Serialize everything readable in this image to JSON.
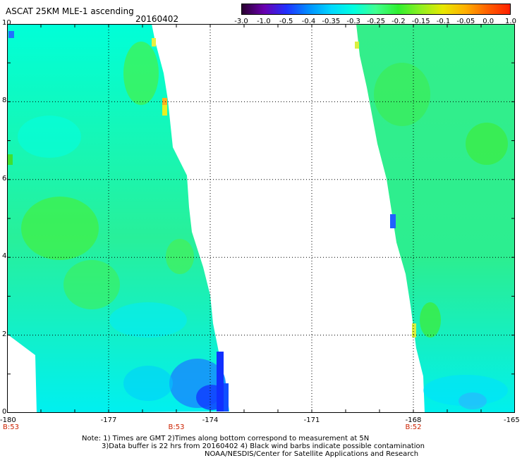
{
  "header": {
    "title": "ASCAT 25KM MLE-1 ascending",
    "date": "20160402"
  },
  "colorbar": {
    "labels": [
      "-3.0",
      "-1.0",
      "-0.5",
      "-0.4",
      "-0.35",
      "-0.3",
      "-0.25",
      "-0.2",
      "-0.15",
      "-0.1",
      "-0.05",
      "0.0",
      "1.0"
    ],
    "colors": [
      "#2a0030",
      "#6a00b0",
      "#2030ff",
      "#0090ff",
      "#00d8ff",
      "#00ffe0",
      "#40ff90",
      "#30f030",
      "#90f020",
      "#e8e800",
      "#ffb000",
      "#ff6000",
      "#ff2000"
    ]
  },
  "map": {
    "x_range": [
      -180,
      -165
    ],
    "y_range": [
      0,
      10
    ],
    "x_tick_labels": [
      "-180",
      "-177",
      "-174",
      "-171",
      "-168",
      "-165"
    ],
    "y_tick_labels": [
      "0",
      "2",
      "4",
      "6",
      "8",
      "10"
    ],
    "grid": "dotted",
    "pass_labels": [
      {
        "text": "B:53",
        "lon": -180
      },
      {
        "text": "B:53",
        "lon": -175
      },
      {
        "text": "B:52",
        "lon": -168
      }
    ]
  },
  "notes": [
    "Note: 1) Times are GMT 2)Times along bottom correspond to measurement at 5N",
    "3)Data buffer is 22 hrs from 20160402 4) Black wind barbs indicate possible contamination",
    "NOAA/NESDIS/Center for Satellite Applications and Research"
  ]
}
